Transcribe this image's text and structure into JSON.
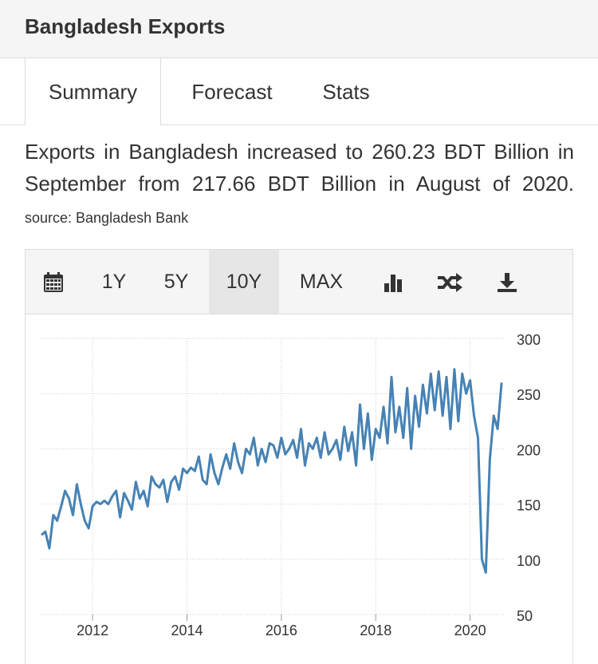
{
  "header": {
    "title": "Bangladesh Exports"
  },
  "tabs": [
    {
      "label": "Summary"
    },
    {
      "label": "Forecast"
    },
    {
      "label": "Stats"
    }
  ],
  "summary": {
    "text": "Exports in Bangladesh increased to 260.23 BDT Billion in September from 217.66 BDT Billion in August of 2020.",
    "source": "source: Bangladesh Bank"
  },
  "toolbar": {
    "range_1y": "1Y",
    "range_5y": "5Y",
    "range_10y": "10Y",
    "range_max": "MAX",
    "active_range": "10Y",
    "icons": [
      "calendar-icon",
      "bar-chart-icon",
      "shuffle-icon",
      "download-icon"
    ]
  },
  "colors": {
    "line": "#4682b4",
    "header_bg": "#f5f5f5",
    "grid": "#cccccc",
    "text": "#333333"
  },
  "chart_data": {
    "type": "line",
    "title": "",
    "xlabel": "",
    "ylabel": "",
    "x_ticks": [
      "2012",
      "2014",
      "2016",
      "2018",
      "2020"
    ],
    "y_ticks": [
      50,
      100,
      150,
      200,
      250,
      300
    ],
    "ylim": [
      50,
      300
    ],
    "xlim": [
      "2010-12",
      "2020-10"
    ],
    "grid": true,
    "legend": "none",
    "series": [
      {
        "name": "",
        "x": [
          "2010-12",
          "2011-01",
          "2011-02",
          "2011-03",
          "2011-04",
          "2011-05",
          "2011-06",
          "2011-07",
          "2011-08",
          "2011-09",
          "2011-10",
          "2011-11",
          "2011-12",
          "2012-01",
          "2012-02",
          "2012-03",
          "2012-04",
          "2012-05",
          "2012-06",
          "2012-07",
          "2012-08",
          "2012-09",
          "2012-10",
          "2012-11",
          "2012-12",
          "2013-01",
          "2013-02",
          "2013-03",
          "2013-04",
          "2013-05",
          "2013-06",
          "2013-07",
          "2013-08",
          "2013-09",
          "2013-10",
          "2013-11",
          "2013-12",
          "2014-01",
          "2014-02",
          "2014-03",
          "2014-04",
          "2014-05",
          "2014-06",
          "2014-07",
          "2014-08",
          "2014-09",
          "2014-10",
          "2014-11",
          "2014-12",
          "2015-01",
          "2015-02",
          "2015-03",
          "2015-04",
          "2015-05",
          "2015-06",
          "2015-07",
          "2015-08",
          "2015-09",
          "2015-10",
          "2015-11",
          "2015-12",
          "2016-01",
          "2016-02",
          "2016-03",
          "2016-04",
          "2016-05",
          "2016-06",
          "2016-07",
          "2016-08",
          "2016-09",
          "2016-10",
          "2016-11",
          "2016-12",
          "2017-01",
          "2017-02",
          "2017-03",
          "2017-04",
          "2017-05",
          "2017-06",
          "2017-07",
          "2017-08",
          "2017-09",
          "2017-10",
          "2017-11",
          "2017-12",
          "2018-01",
          "2018-02",
          "2018-03",
          "2018-04",
          "2018-05",
          "2018-06",
          "2018-07",
          "2018-08",
          "2018-09",
          "2018-10",
          "2018-11",
          "2018-12",
          "2019-01",
          "2019-02",
          "2019-03",
          "2019-04",
          "2019-05",
          "2019-06",
          "2019-07",
          "2019-08",
          "2019-09",
          "2019-10",
          "2019-11",
          "2019-12",
          "2020-01",
          "2020-02",
          "2020-03",
          "2020-04",
          "2020-05",
          "2020-06",
          "2020-07",
          "2020-08",
          "2020-09"
        ],
        "values": [
          122,
          125,
          110,
          140,
          135,
          148,
          162,
          155,
          140,
          168,
          150,
          135,
          128,
          148,
          152,
          150,
          153,
          150,
          157,
          162,
          138,
          160,
          153,
          145,
          170,
          155,
          162,
          148,
          175,
          168,
          165,
          172,
          152,
          170,
          175,
          163,
          182,
          178,
          183,
          180,
          193,
          172,
          168,
          195,
          178,
          168,
          183,
          195,
          182,
          205,
          188,
          178,
          200,
          195,
          210,
          185,
          200,
          188,
          205,
          203,
          192,
          210,
          195,
          200,
          208,
          192,
          218,
          185,
          205,
          200,
          210,
          192,
          215,
          195,
          200,
          208,
          190,
          220,
          198,
          215,
          185,
          240,
          200,
          232,
          190,
          218,
          210,
          238,
          205,
          265,
          215,
          238,
          210,
          255,
          200,
          248,
          220,
          258,
          232,
          268,
          235,
          270,
          230,
          265,
          218,
          272,
          225,
          268,
          250,
          262,
          230,
          210,
          100,
          88,
          190,
          230,
          218,
          260
        ]
      }
    ]
  }
}
